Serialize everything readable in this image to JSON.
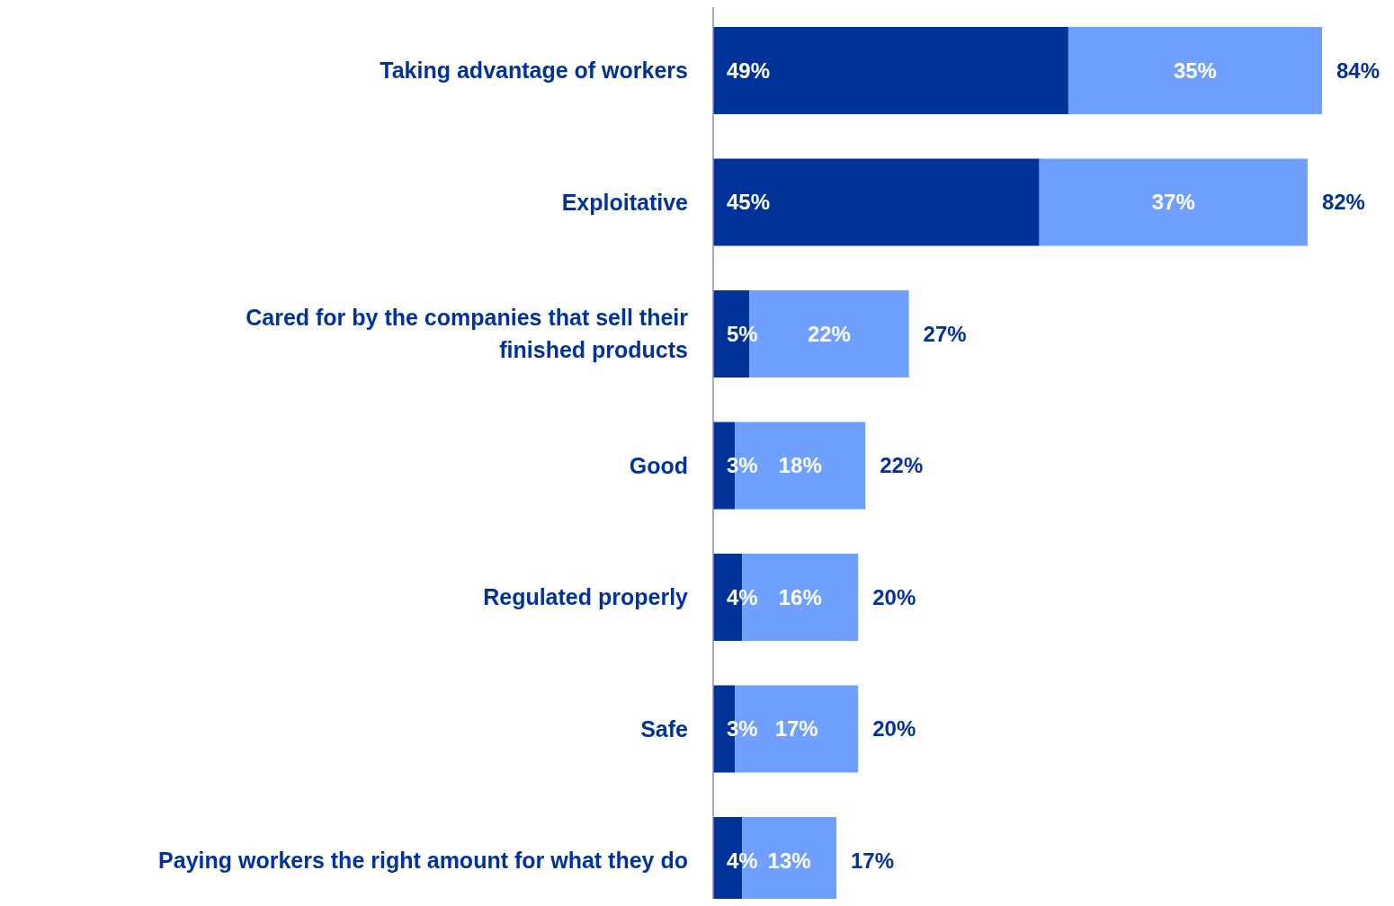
{
  "chart_data": {
    "type": "bar",
    "orientation": "horizontal",
    "stacked": true,
    "categories": [
      "Taking advantage of workers",
      "Exploitative",
      "Cared for by the companies that sell their finished products",
      "Good",
      "Regulated properly",
      "Safe",
      "Paying workers the right amount for what they do"
    ],
    "series": [
      {
        "color": "#003399",
        "values": [
          49,
          45,
          5,
          3,
          4,
          3,
          4
        ],
        "value_labels": [
          "49%",
          "45%",
          "5%",
          "3%",
          "4%",
          "3%",
          "4%"
        ]
      },
      {
        "color": "#6f9fff",
        "values": [
          35,
          37,
          22,
          18,
          16,
          17,
          13
        ],
        "value_labels": [
          "35%",
          "37%",
          "22%",
          "18%",
          "16%",
          "17%",
          "13%"
        ]
      }
    ],
    "totals": [
      "84%",
      "82%",
      "27%",
      "22%",
      "20%",
      "20%",
      "17%"
    ]
  }
}
